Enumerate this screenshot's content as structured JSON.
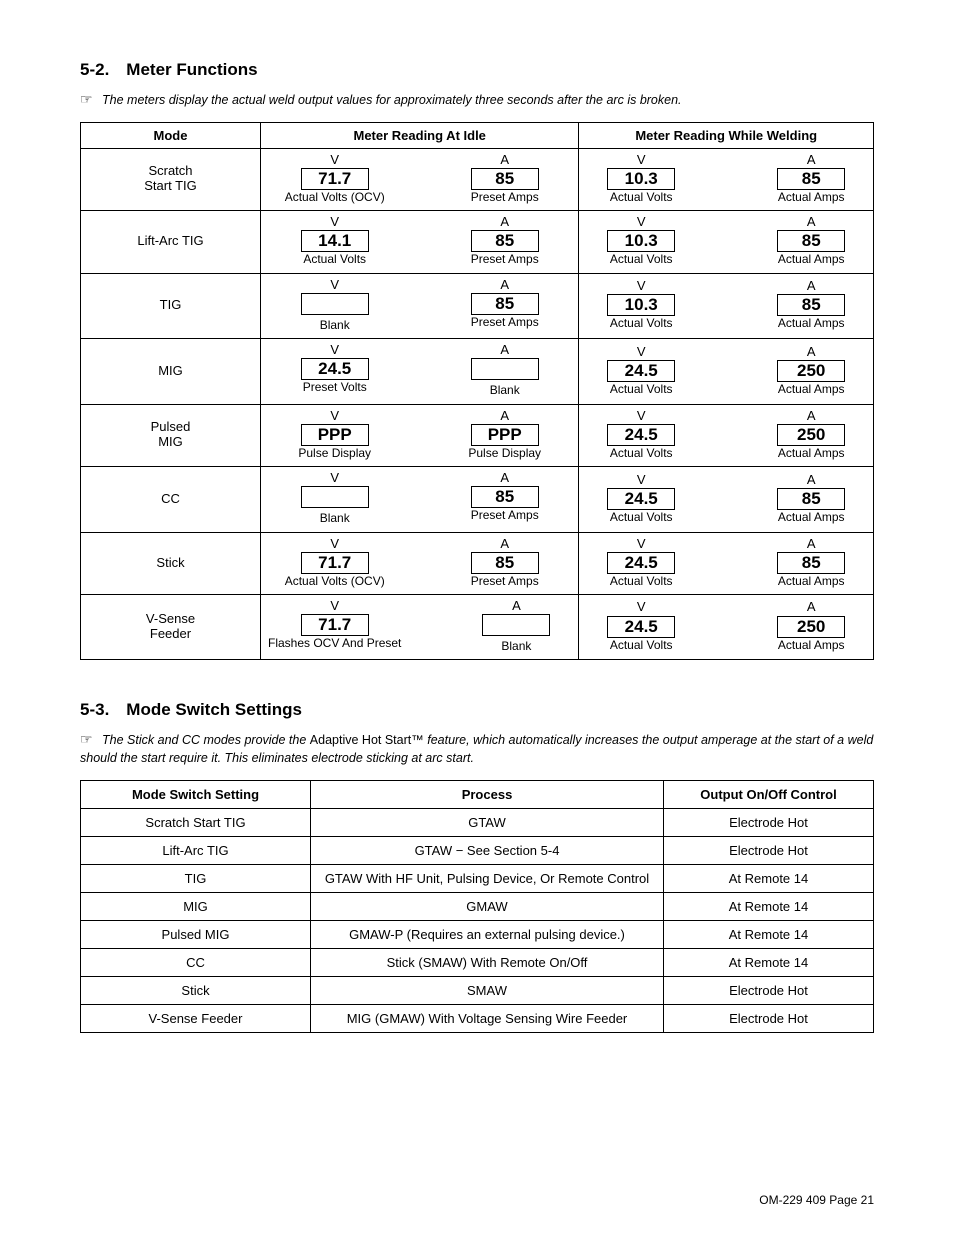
{
  "section52": {
    "heading": "5-2. Meter Functions",
    "note": "The meters display the actual weld output values for approximately three seconds after the arc is broken.",
    "table": {
      "headers": {
        "mode": "Mode",
        "idle": "Meter Reading At Idle",
        "weld": "Meter Reading While Welding"
      },
      "unitV": "V",
      "unitA": "A",
      "rows": [
        {
          "mode": "Scratch\nStart TIG",
          "idleV": {
            "val": "71.7",
            "sub": "Actual Volts (OCV)"
          },
          "idleA": {
            "val": "85",
            "sub": "Preset Amps"
          },
          "weldV": {
            "val": "10.3",
            "sub": "Actual Volts"
          },
          "weldA": {
            "val": "85",
            "sub": "Actual Amps"
          }
        },
        {
          "mode": "Lift-Arc TIG",
          "idleV": {
            "val": "14.1",
            "sub": "Actual Volts"
          },
          "idleA": {
            "val": "85",
            "sub": "Preset Amps"
          },
          "weldV": {
            "val": "10.3",
            "sub": "Actual Volts"
          },
          "weldA": {
            "val": "85",
            "sub": "Actual Amps"
          }
        },
        {
          "mode": "TIG",
          "idleV": {
            "val": "",
            "sub": "Blank"
          },
          "idleA": {
            "val": "85",
            "sub": "Preset Amps"
          },
          "weldV": {
            "val": "10.3",
            "sub": "Actual Volts"
          },
          "weldA": {
            "val": "85",
            "sub": "Actual Amps"
          }
        },
        {
          "mode": "MIG",
          "idleV": {
            "val": "24.5",
            "sub": "Preset Volts"
          },
          "idleA": {
            "val": "",
            "sub": "Blank"
          },
          "weldV": {
            "val": "24.5",
            "sub": "Actual Volts"
          },
          "weldA": {
            "val": "250",
            "sub": "Actual Amps"
          }
        },
        {
          "mode": "Pulsed\nMIG",
          "idleV": {
            "val": "PPP",
            "sub": "Pulse Display"
          },
          "idleA": {
            "val": "PPP",
            "sub": "Pulse Display"
          },
          "weldV": {
            "val": "24.5",
            "sub": "Actual Volts"
          },
          "weldA": {
            "val": "250",
            "sub": "Actual Amps"
          }
        },
        {
          "mode": "CC",
          "idleV": {
            "val": "",
            "sub": "Blank"
          },
          "idleA": {
            "val": "85",
            "sub": "Preset Amps"
          },
          "weldV": {
            "val": "24.5",
            "sub": "Actual Volts"
          },
          "weldA": {
            "val": "85",
            "sub": "Actual Amps"
          }
        },
        {
          "mode": "Stick",
          "idleV": {
            "val": "71.7",
            "sub": "Actual Volts (OCV)"
          },
          "idleA": {
            "val": "85",
            "sub": "Preset Amps"
          },
          "weldV": {
            "val": "24.5",
            "sub": "Actual Volts"
          },
          "weldA": {
            "val": "85",
            "sub": "Actual Amps"
          }
        },
        {
          "mode": "V-Sense\nFeeder",
          "idleV": {
            "val": "71.7",
            "sub": "Flashes OCV And Preset"
          },
          "idleA": {
            "val": "",
            "sub": "Blank"
          },
          "weldV": {
            "val": "24.5",
            "sub": "Actual Volts"
          },
          "weldA": {
            "val": "250",
            "sub": "Actual Amps"
          }
        }
      ]
    }
  },
  "section53": {
    "heading": "5-3. Mode Switch Settings",
    "note_pre": "The Stick and CC modes provide the ",
    "note_feature": "Adaptive Hot Start",
    "note_tm": "™",
    "note_post": " feature, which automatically increases the output amperage at the start of a weld should the start require it. This eliminates electrode sticking at arc start.",
    "table": {
      "headers": {
        "setting": "Mode Switch Setting",
        "process": "Process",
        "control": "Output On/Off Control"
      },
      "rows": [
        {
          "setting": "Scratch Start TIG",
          "process": "GTAW",
          "control": "Electrode Hot"
        },
        {
          "setting": "Lift-Arc TIG",
          "process": "GTAW − See Section 5-4",
          "control": "Electrode Hot"
        },
        {
          "setting": "TIG",
          "process": "GTAW With HF Unit, Pulsing Device, Or Remote Control",
          "control": "At Remote 14"
        },
        {
          "setting": "MIG",
          "process": "GMAW",
          "control": "At Remote 14"
        },
        {
          "setting": "Pulsed MIG",
          "process": "GMAW-P (Requires an external pulsing device.)",
          "control": "At Remote 14"
        },
        {
          "setting": "CC",
          "process": "Stick (SMAW) With Remote On/Off",
          "control": "At Remote 14"
        },
        {
          "setting": "Stick",
          "process": "SMAW",
          "control": "Electrode Hot"
        },
        {
          "setting": "V-Sense Feeder",
          "process": "MIG (GMAW) With Voltage Sensing Wire Feeder",
          "control": "Electrode Hot"
        }
      ]
    }
  },
  "footer": "OM-229 409 Page 21"
}
